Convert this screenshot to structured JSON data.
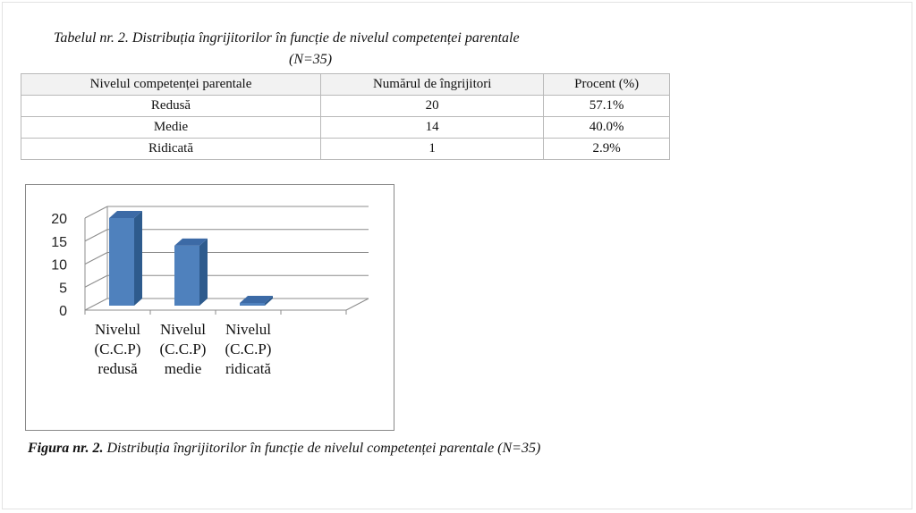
{
  "table": {
    "title": "Tabelul nr. 2. Distribuția îngrijitorilor în funcție de nivelul competenței parentale",
    "subtitle": "(N=35)",
    "headers": [
      "Nivelul competenței parentale",
      "Numărul de îngrijitori",
      "Procent (%)"
    ],
    "rows": [
      [
        "Redusă",
        "20",
        "57.1%"
      ],
      [
        "Medie",
        "14",
        "40.0%"
      ],
      [
        "Ridicată",
        "1",
        "2.9%"
      ]
    ]
  },
  "figure_caption": {
    "label": "Figura nr. 2.",
    "text": " Distribuția îngrijitorilor în funcție de nivelul competenței parentale (N=35)"
  },
  "chart_data": {
    "type": "bar",
    "style": "3d-column",
    "categories": [
      [
        "Nivelul",
        "(C.C.P)",
        "redusă"
      ],
      [
        "Nivelul",
        "(C.C.P)",
        "medie"
      ],
      [
        "Nivelul",
        "(C.C.P)",
        "ridicată"
      ]
    ],
    "values": [
      20,
      14,
      1
    ],
    "ylim": [
      0,
      20
    ],
    "yticks": [
      0,
      5,
      10,
      15,
      20
    ],
    "grid": true,
    "legend": "none",
    "colors": {
      "bar_front": "#4f81bd",
      "bar_side": "#2e5b8d",
      "bar_top": "#3c6aa6",
      "grid": "#8c8c8c"
    }
  }
}
